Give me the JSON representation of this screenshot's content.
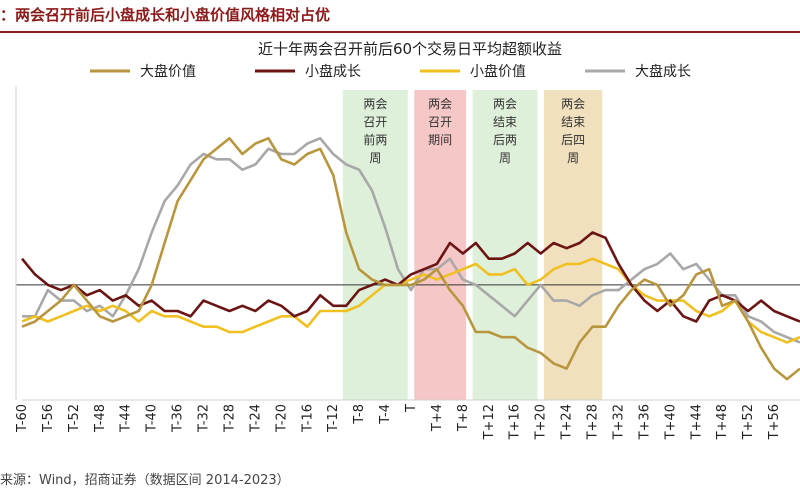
{
  "report": {
    "title": "：两会召开前后小盘成长和小盘价值风格相对占优",
    "source": "来源：Wind，招商证券（数据区间 2014-2023）"
  },
  "chart_data": {
    "type": "line",
    "title": "近十年两会召开前后60个交易日平均超额收益",
    "x": [
      -60,
      -58,
      -56,
      -54,
      -52,
      -50,
      -48,
      -46,
      -44,
      -42,
      -40,
      -38,
      -36,
      -34,
      -32,
      -30,
      -28,
      -26,
      -24,
      -22,
      -20,
      -18,
      -16,
      -14,
      -12,
      -10,
      -8,
      -6,
      -4,
      -2,
      0,
      2,
      4,
      6,
      8,
      10,
      12,
      14,
      16,
      18,
      20,
      22,
      24,
      26,
      28,
      30,
      32,
      34,
      36,
      38,
      40,
      42,
      44,
      46,
      48,
      50,
      52,
      54,
      56,
      58,
      60
    ],
    "xtick_labels": [
      "T-60",
      "T-56",
      "T-52",
      "T-48",
      "T-44",
      "T-40",
      "T-36",
      "T-32",
      "T-28",
      "T-24",
      "T-20",
      "T-16",
      "T-12",
      "T-8",
      "T-4",
      "T",
      "T+4",
      "T+8",
      "T+12",
      "T+16",
      "T+20",
      "T+24",
      "T+28",
      "T+32",
      "T+36",
      "T+40",
      "T+44",
      "T+48",
      "T+52",
      "T+56"
    ],
    "ylim": [
      -2.2,
      3.8
    ],
    "zero_line": true,
    "legend_position": "top",
    "series": [
      {
        "name": "大盘价值",
        "color": "#b8963e",
        "values": [
          -0.8,
          -0.7,
          -0.5,
          -0.3,
          0.0,
          -0.3,
          -0.6,
          -0.7,
          -0.6,
          -0.5,
          0.0,
          0.8,
          1.6,
          2.0,
          2.4,
          2.6,
          2.8,
          2.5,
          2.7,
          2.8,
          2.4,
          2.3,
          2.5,
          2.6,
          2.1,
          1.0,
          0.3,
          0.1,
          0.0,
          0.0,
          0.0,
          0.1,
          0.3,
          -0.1,
          -0.4,
          -0.9,
          -0.9,
          -1.0,
          -1.0,
          -1.2,
          -1.3,
          -1.5,
          -1.6,
          -1.1,
          -0.8,
          -0.8,
          -0.4,
          -0.1,
          0.1,
          0.0,
          -0.4,
          -0.2,
          0.2,
          0.3,
          -0.4,
          -0.3,
          -0.7,
          -1.2,
          -1.6,
          -1.8,
          -1.6
        ]
      },
      {
        "name": "小盘成长",
        "color": "#6b1414",
        "values": [
          0.5,
          0.2,
          0.0,
          -0.1,
          0.0,
          -0.2,
          -0.1,
          -0.3,
          -0.2,
          -0.4,
          -0.3,
          -0.5,
          -0.5,
          -0.6,
          -0.3,
          -0.4,
          -0.5,
          -0.4,
          -0.5,
          -0.3,
          -0.4,
          -0.6,
          -0.5,
          -0.2,
          -0.4,
          -0.4,
          -0.1,
          0.0,
          0.1,
          0.0,
          0.2,
          0.3,
          0.4,
          0.8,
          0.6,
          0.8,
          0.5,
          0.5,
          0.6,
          0.8,
          0.6,
          0.8,
          0.7,
          0.8,
          1.0,
          0.9,
          0.4,
          0.0,
          -0.3,
          -0.5,
          -0.3,
          -0.6,
          -0.7,
          -0.3,
          -0.2,
          -0.3,
          -0.5,
          -0.3,
          -0.5,
          -0.6,
          -0.7
        ]
      },
      {
        "name": "小盘价值",
        "color": "#f0c020",
        "values": [
          -0.7,
          -0.6,
          -0.7,
          -0.6,
          -0.5,
          -0.4,
          -0.5,
          -0.4,
          -0.5,
          -0.7,
          -0.5,
          -0.6,
          -0.6,
          -0.7,
          -0.8,
          -0.8,
          -0.9,
          -0.9,
          -0.8,
          -0.7,
          -0.6,
          -0.6,
          -0.8,
          -0.5,
          -0.5,
          -0.5,
          -0.4,
          -0.2,
          0.0,
          0.0,
          0.1,
          0.2,
          0.1,
          0.2,
          0.3,
          0.4,
          0.2,
          0.2,
          0.3,
          0.0,
          0.1,
          0.3,
          0.4,
          0.4,
          0.5,
          0.4,
          0.3,
          0.0,
          -0.2,
          -0.3,
          -0.3,
          -0.3,
          -0.5,
          -0.6,
          -0.5,
          -0.3,
          -0.7,
          -0.9,
          -1.0,
          -1.1,
          -1.0
        ]
      },
      {
        "name": "大盘成长",
        "color": "#a8a8a8",
        "values": [
          -0.6,
          -0.6,
          -0.1,
          -0.3,
          -0.3,
          -0.5,
          -0.4,
          -0.6,
          -0.2,
          0.3,
          1.0,
          1.6,
          1.9,
          2.3,
          2.5,
          2.4,
          2.4,
          2.2,
          2.3,
          2.6,
          2.5,
          2.5,
          2.7,
          2.8,
          2.5,
          2.3,
          2.2,
          1.8,
          1.1,
          0.3,
          -0.1,
          0.3,
          0.3,
          0.5,
          0.1,
          0.0,
          -0.2,
          -0.4,
          -0.6,
          -0.3,
          0.0,
          -0.3,
          -0.3,
          -0.4,
          -0.2,
          -0.1,
          -0.1,
          0.1,
          0.3,
          0.4,
          0.6,
          0.3,
          0.4,
          0.1,
          -0.2,
          -0.2,
          -0.6,
          -0.7,
          -0.9,
          -1.0,
          -1.1
        ]
      }
    ],
    "annotations": [
      {
        "label": "两会召开前两周",
        "x_from": -10.5,
        "x_to": -0.5,
        "color": "#dff0da"
      },
      {
        "label": "两会召开期间",
        "x_from": 0.5,
        "x_to": 8.5,
        "color": "#f6c7c7"
      },
      {
        "label": "两会结束后两周",
        "x_from": 9.5,
        "x_to": 19.5,
        "color": "#dff0da"
      },
      {
        "label": "两会结束后四周",
        "x_from": 20.5,
        "x_to": 29.5,
        "color": "#f1e0bd"
      }
    ]
  }
}
